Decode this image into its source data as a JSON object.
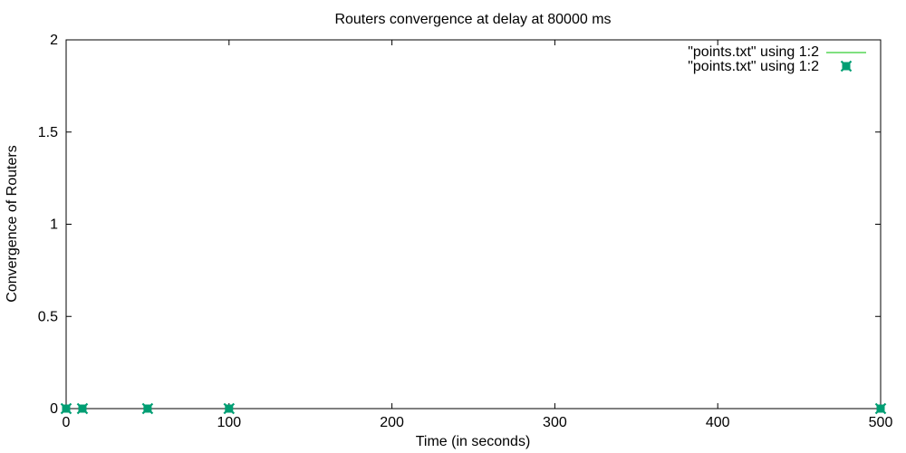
{
  "chart_data": {
    "type": "scatter",
    "title": "Routers convergence at delay at 80000 ms",
    "xlabel": "Time (in seconds)",
    "ylabel": "Convergence of Routers",
    "xlim": [
      0,
      500
    ],
    "ylim": [
      0,
      2
    ],
    "x_ticks": [
      0,
      100,
      200,
      300,
      400,
      500
    ],
    "x_tick_labels": [
      "0",
      "100",
      "200",
      "300",
      "400",
      "500"
    ],
    "y_ticks": [
      0,
      0.5,
      1,
      1.5,
      2
    ],
    "y_tick_labels": [
      "0",
      "0.5",
      "1",
      "1.5",
      "2"
    ],
    "grid": false,
    "legend_position": "top-right",
    "series": [
      {
        "name": "\"points.txt\" using 1:2",
        "style": "line",
        "color": "#00c000",
        "x": [
          0,
          10,
          50,
          100,
          500
        ],
        "y": [
          0,
          0,
          0,
          0,
          0
        ]
      },
      {
        "name": "\"points.txt\" using 1:2",
        "style": "points",
        "color": "#009e73",
        "x": [
          0,
          10,
          50,
          100,
          500
        ],
        "y": [
          0,
          0,
          0,
          0,
          0
        ]
      }
    ]
  }
}
